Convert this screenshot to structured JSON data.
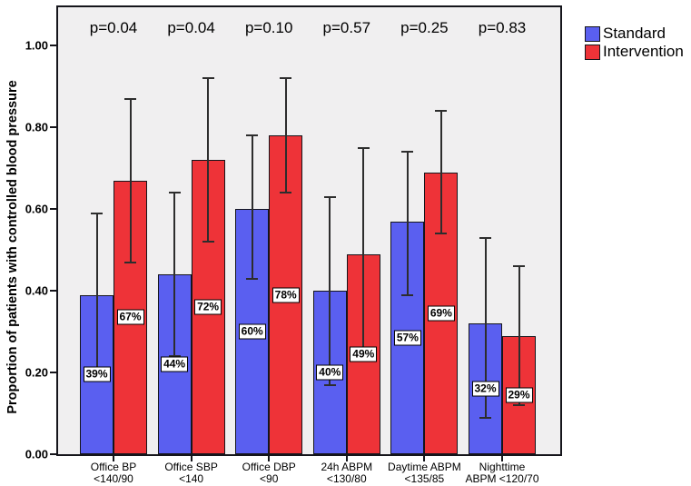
{
  "chart_data": {
    "type": "bar",
    "title": "",
    "ylabel": "Proportion of patients with controlled blood pressure",
    "xlabel": "",
    "ylim": [
      0,
      1.0
    ],
    "yticks": [
      0.0,
      0.2,
      0.4,
      0.6,
      0.8,
      1.0
    ],
    "ytick_labels": [
      "0.00",
      "0.20",
      "0.40",
      "0.60",
      "0.80",
      "1.00"
    ],
    "grid": false,
    "legend_position": "top-right",
    "plot_background": "#f0eff0",
    "categories": [
      [
        "Office BP",
        "<140/90"
      ],
      [
        "Office SBP",
        "<140"
      ],
      [
        "Office DBP",
        "<90"
      ],
      [
        "24h ABPM",
        "<130/80"
      ],
      [
        "Daytime ABPM",
        "<135/85"
      ],
      [
        "Nighttime",
        "ABPM <120/70"
      ]
    ],
    "p_values": [
      "p=0.04",
      "p=0.04",
      "p=0.10",
      "p=0.57",
      "p=0.25",
      "p=0.83"
    ],
    "series": [
      {
        "name": "Standard",
        "color": "#5a5ff0",
        "values": [
          0.39,
          0.44,
          0.6,
          0.4,
          0.57,
          0.32
        ],
        "labels": [
          "39%",
          "44%",
          "60%",
          "40%",
          "57%",
          "32%"
        ],
        "error_low": [
          0.2,
          0.24,
          0.43,
          0.17,
          0.39,
          0.09
        ],
        "error_high": [
          0.59,
          0.64,
          0.78,
          0.63,
          0.74,
          0.53
        ]
      },
      {
        "name": "Intervention",
        "color": "#ee3338",
        "values": [
          0.67,
          0.72,
          0.78,
          0.49,
          0.69,
          0.29
        ],
        "labels": [
          "67%",
          "72%",
          "78%",
          "49%",
          "69%",
          "29%"
        ],
        "error_low": [
          0.47,
          0.52,
          0.64,
          0.24,
          0.54,
          0.12
        ],
        "error_high": [
          0.87,
          0.92,
          0.92,
          0.75,
          0.84,
          0.46
        ]
      }
    ]
  }
}
